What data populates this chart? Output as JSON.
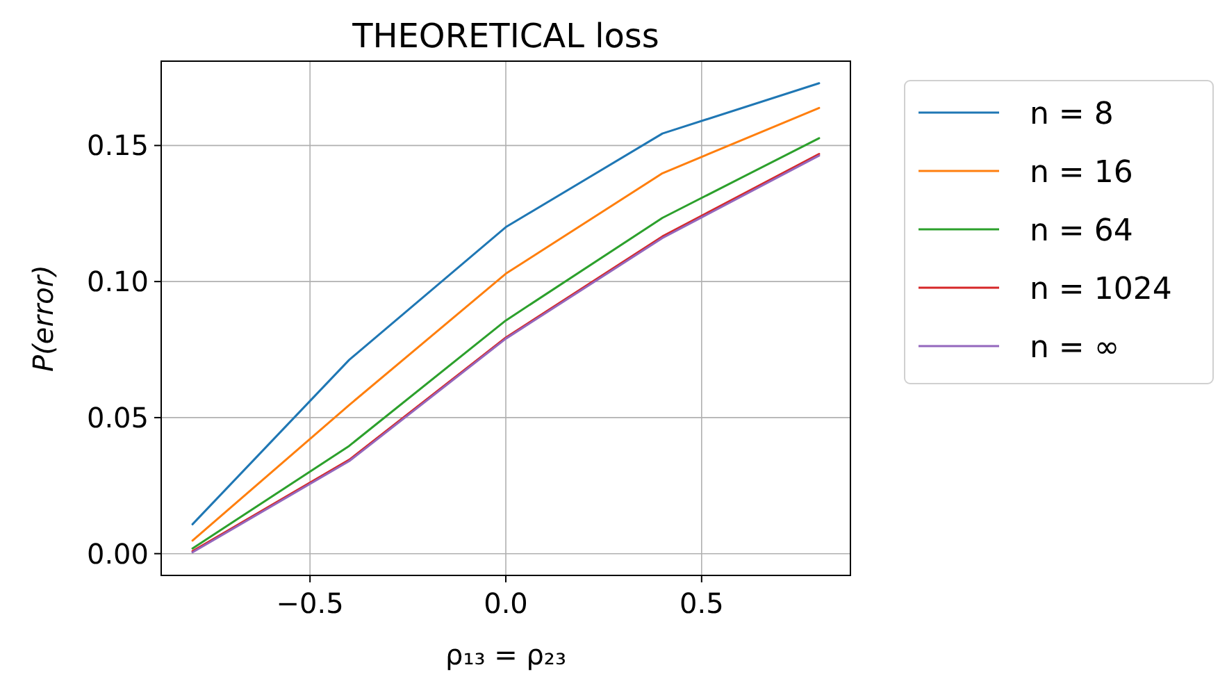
{
  "chart_data": {
    "type": "line",
    "title": "THEORETICAL loss",
    "xlabel": "ρ₁₃ = ρ₂₃",
    "ylabel": "P(error)",
    "x": [
      -0.8,
      -0.4,
      0,
      0.4,
      0.8
    ],
    "series": [
      {
        "name": "n = 8",
        "color": "#1f77b4",
        "values": [
          0.0108,
          0.0712,
          0.12,
          0.1544,
          0.1729
        ]
      },
      {
        "name": "n = 16",
        "color": "#ff7f0e",
        "values": [
          0.0048,
          0.0546,
          0.1029,
          0.1398,
          0.1638
        ]
      },
      {
        "name": "n = 64",
        "color": "#2ca02c",
        "values": [
          0.0019,
          0.0396,
          0.0857,
          0.1234,
          0.1527
        ]
      },
      {
        "name": "n = 1024",
        "color": "#d62728",
        "values": [
          0.0009,
          0.0345,
          0.0794,
          0.1166,
          0.1469
        ]
      },
      {
        "name": "n = ∞",
        "color": "#9467bd",
        "values": [
          0.0005,
          0.034,
          0.079,
          0.116,
          0.1463
        ]
      }
    ],
    "xlim": [
      -0.88,
      0.88
    ],
    "xticks": [
      {
        "value": -0.5,
        "label": "−0.5"
      },
      {
        "value": 0,
        "label": "0.0"
      },
      {
        "value": 0.5,
        "label": "0.5"
      }
    ],
    "ylim": [
      -0.008,
      0.181
    ],
    "yticks": [
      {
        "value": 0,
        "label": "0.00"
      },
      {
        "value": 0.05,
        "label": "0.05"
      },
      {
        "value": 0.1,
        "label": "0.10"
      },
      {
        "value": 0.15,
        "label": "0.15"
      }
    ],
    "grid": true,
    "legend": "top right",
    "line_style": "solid"
  }
}
